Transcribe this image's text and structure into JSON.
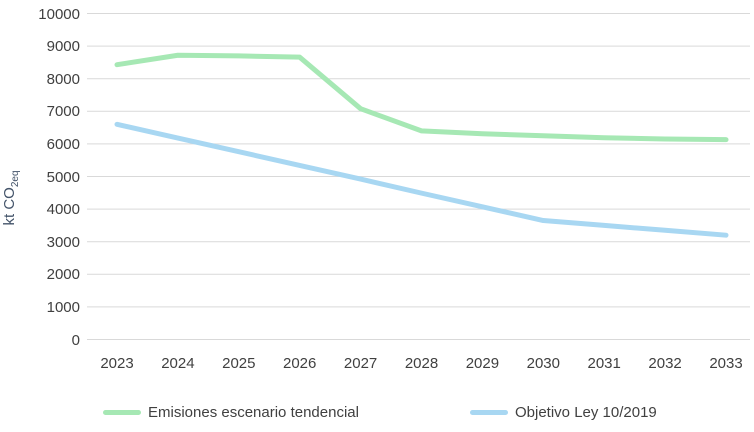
{
  "chart_data": {
    "type": "line",
    "x": [
      2023,
      2024,
      2025,
      2026,
      2027,
      2028,
      2029,
      2030,
      2031,
      2032,
      2033
    ],
    "series": [
      {
        "name": "Emisiones escenario tendencial",
        "color": "#a6e8b4",
        "values": [
          8430,
          8720,
          8700,
          8660,
          7080,
          6400,
          6310,
          6250,
          6190,
          6150,
          6130
        ]
      },
      {
        "name": "Objetivo Ley 10/2019",
        "color": "#a8d7f2",
        "values": [
          6600,
          6180,
          5760,
          5340,
          4920,
          4490,
          4070,
          3650,
          3500,
          3350,
          3200
        ]
      }
    ],
    "title": "",
    "xlabel": "",
    "ylabel": "kt CO2eq",
    "ylabel_prefix": "kt CO",
    "ylabel_subscript": "2eq",
    "ylim": [
      0,
      10000
    ],
    "ytick_step": 1000,
    "ytick_labels": [
      "0",
      "1000",
      "2000",
      "3000",
      "4000",
      "5000",
      "6000",
      "7000",
      "8000",
      "9000",
      "10000"
    ],
    "grid": true,
    "gridline_color": "#d9d9d9",
    "tick_label_color": "#404040",
    "axis_title_color": "#44546a",
    "legend_position": "bottom"
  }
}
